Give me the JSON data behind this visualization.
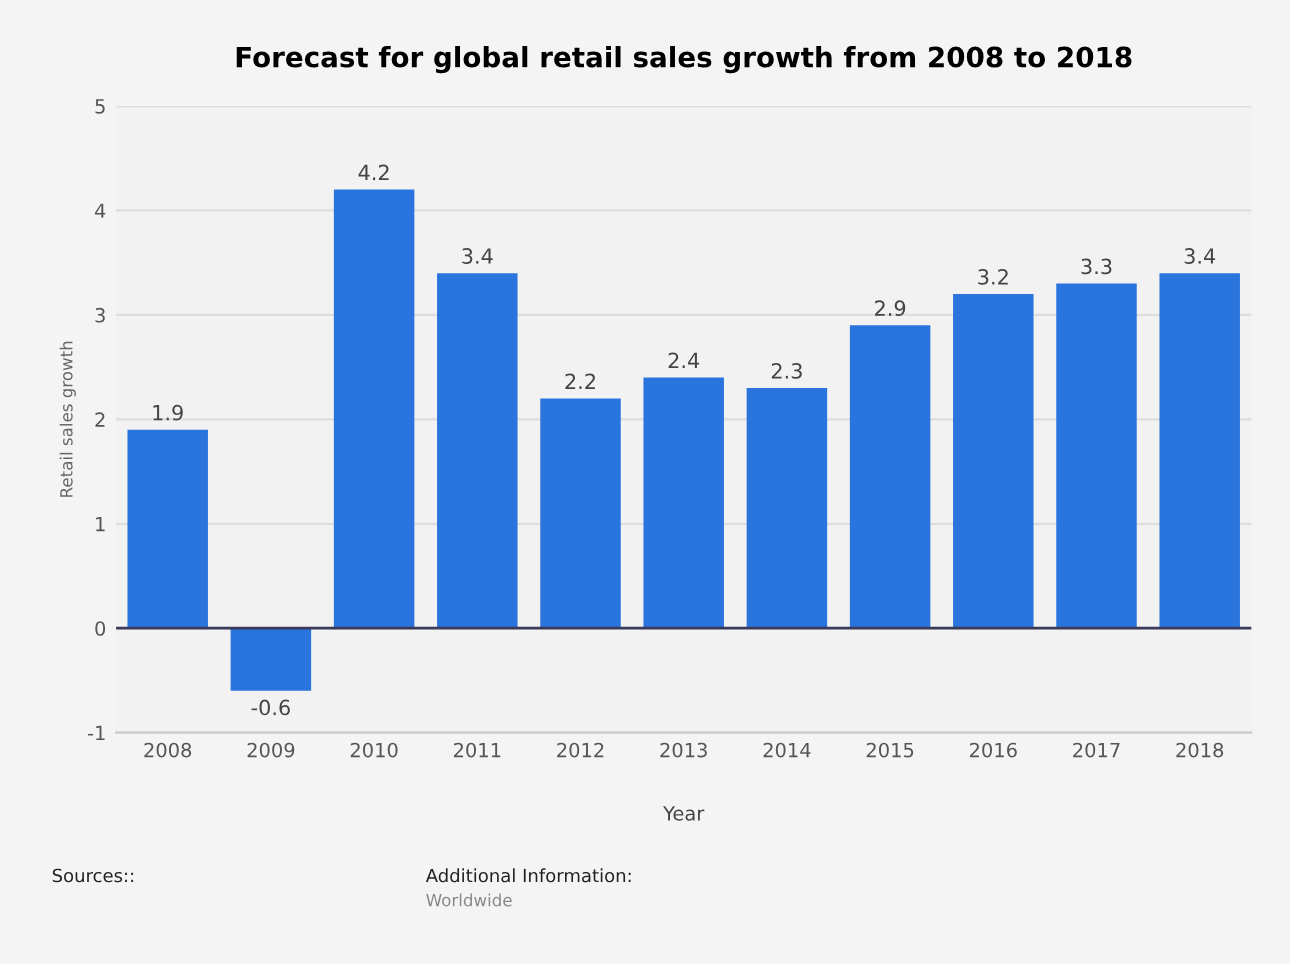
{
  "chart_data": {
    "type": "bar",
    "title": "Forecast for global retail sales growth from 2008 to 2018",
    "xlabel": "Year",
    "ylabel": "Retail sales growth",
    "categories": [
      "2008",
      "2009",
      "2010",
      "2011",
      "2012",
      "2013",
      "2014",
      "2015",
      "2016",
      "2017",
      "2018"
    ],
    "values": [
      1.9,
      -0.6,
      4.2,
      3.4,
      2.2,
      2.4,
      2.3,
      2.9,
      3.2,
      3.3,
      3.4
    ],
    "color": "#2a75dd",
    "ylim": [
      -1,
      5
    ],
    "yticks": [
      -1,
      0,
      1,
      2,
      3,
      4,
      5
    ],
    "grid": "y",
    "data_labels": true,
    "annotations": [
      "Sources::",
      "Additional Information:",
      "Worldwide"
    ]
  }
}
